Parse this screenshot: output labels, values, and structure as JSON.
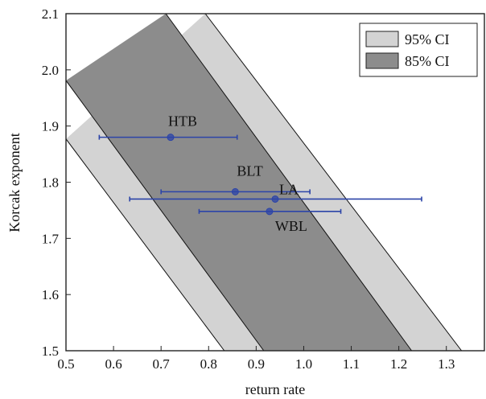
{
  "chart_data": {
    "type": "scatter",
    "xlabel": "return rate",
    "ylabel": "Korcak exponent",
    "xlim": [
      0.5,
      1.38
    ],
    "ylim": [
      1.5,
      2.1
    ],
    "xticks": [
      "0.5",
      "0.6",
      "0.7",
      "0.8",
      "0.9",
      "1.0",
      "1.1",
      "1.2",
      "1.3"
    ],
    "yticks": [
      "1.5",
      "1.6",
      "1.7",
      "1.8",
      "1.9",
      "2.0",
      "2.1"
    ],
    "grid": false,
    "legend_position": "top-right",
    "bands": [
      {
        "name": "95% CI",
        "color": "#d3d3d3",
        "lower_boundary": [
          [
            0.5,
            1.877
          ],
          [
            0.833,
            1.5
          ]
        ],
        "upper_boundary": [
          [
            0.793,
            2.1
          ],
          [
            1.332,
            1.5
          ]
        ]
      },
      {
        "name": "85% CI",
        "color": "#8c8c8c",
        "lower_boundary": [
          [
            0.5,
            1.981
          ],
          [
            0.916,
            1.5
          ]
        ],
        "upper_boundary": [
          [
            0.71,
            2.1
          ],
          [
            1.227,
            1.5
          ]
        ]
      }
    ],
    "points": [
      {
        "label": "HTB",
        "x": 0.72,
        "y": 1.88,
        "xerr": [
          0.57,
          0.86
        ]
      },
      {
        "label": "BLT",
        "x": 0.856,
        "y": 1.783,
        "xerr": [
          0.7,
          1.013
        ]
      },
      {
        "label": "LA",
        "x": 0.94,
        "y": 1.77,
        "xerr": [
          0.634,
          1.248
        ]
      },
      {
        "label": "WBL",
        "x": 0.928,
        "y": 1.748,
        "xerr": [
          0.78,
          1.078
        ]
      }
    ],
    "point_color": "#2c44a8",
    "boundary_color": "#111111"
  }
}
